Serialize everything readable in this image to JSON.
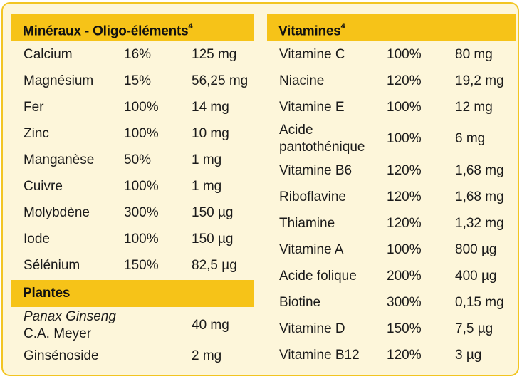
{
  "minerals": {
    "title": "Minéraux - Oligo-éléments",
    "title_sup": "4",
    "rows": [
      {
        "name": "Calcium",
        "pct": "16%",
        "amount": "125 mg"
      },
      {
        "name": "Magnésium",
        "pct": "15%",
        "amount": "56,25 mg"
      },
      {
        "name": "Fer",
        "pct": "100%",
        "amount": "14 mg"
      },
      {
        "name": "Zinc",
        "pct": "100%",
        "amount": "10 mg"
      },
      {
        "name": "Manganèse",
        "pct": "50%",
        "amount": "1 mg"
      },
      {
        "name": "Cuivre",
        "pct": "100%",
        "amount": "1 mg"
      },
      {
        "name": "Molybdène",
        "pct": "300%",
        "amount": "150 µg"
      },
      {
        "name": "Iode",
        "pct": "100%",
        "amount": "150 µg"
      },
      {
        "name": "Sélénium",
        "pct": "150%",
        "amount": "82,5 µg"
      }
    ]
  },
  "plants": {
    "title": "Plantes",
    "rows": [
      {
        "name_line1": "Panax Ginseng",
        "name_line2": "C.A. Meyer",
        "amount": "40 mg"
      },
      {
        "name": "Ginsénoside",
        "amount": "2 mg"
      }
    ]
  },
  "vitamins": {
    "title": "Vitamines",
    "title_sup": "4",
    "rows": [
      {
        "name": "Vitamine C",
        "pct": "100%",
        "amount": "80 mg"
      },
      {
        "name": "Niacine",
        "pct": "120%",
        "amount": "19,2 mg"
      },
      {
        "name": "Vitamine E",
        "pct": "100%",
        "amount": "12 mg"
      },
      {
        "name_line1": "Acide",
        "name_line2": "pantothénique",
        "pct": "100%",
        "amount": "6 mg"
      },
      {
        "name": "Vitamine B6",
        "pct": "120%",
        "amount": "1,68 mg"
      },
      {
        "name": "Riboflavine",
        "pct": "120%",
        "amount": "1,68 mg"
      },
      {
        "name": "Thiamine",
        "pct": "120%",
        "amount": "1,32 mg"
      },
      {
        "name": "Vitamine A",
        "pct": "100%",
        "amount": "800 µg"
      },
      {
        "name": "Acide folique",
        "pct": "200%",
        "amount": "400 µg"
      },
      {
        "name": "Biotine",
        "pct": "300%",
        "amount": "0,15 mg"
      },
      {
        "name": "Vitamine D",
        "pct": "150%",
        "amount": "7,5 µg"
      },
      {
        "name": "Vitamine B12",
        "pct": "120%",
        "amount": "3 µg"
      }
    ]
  }
}
